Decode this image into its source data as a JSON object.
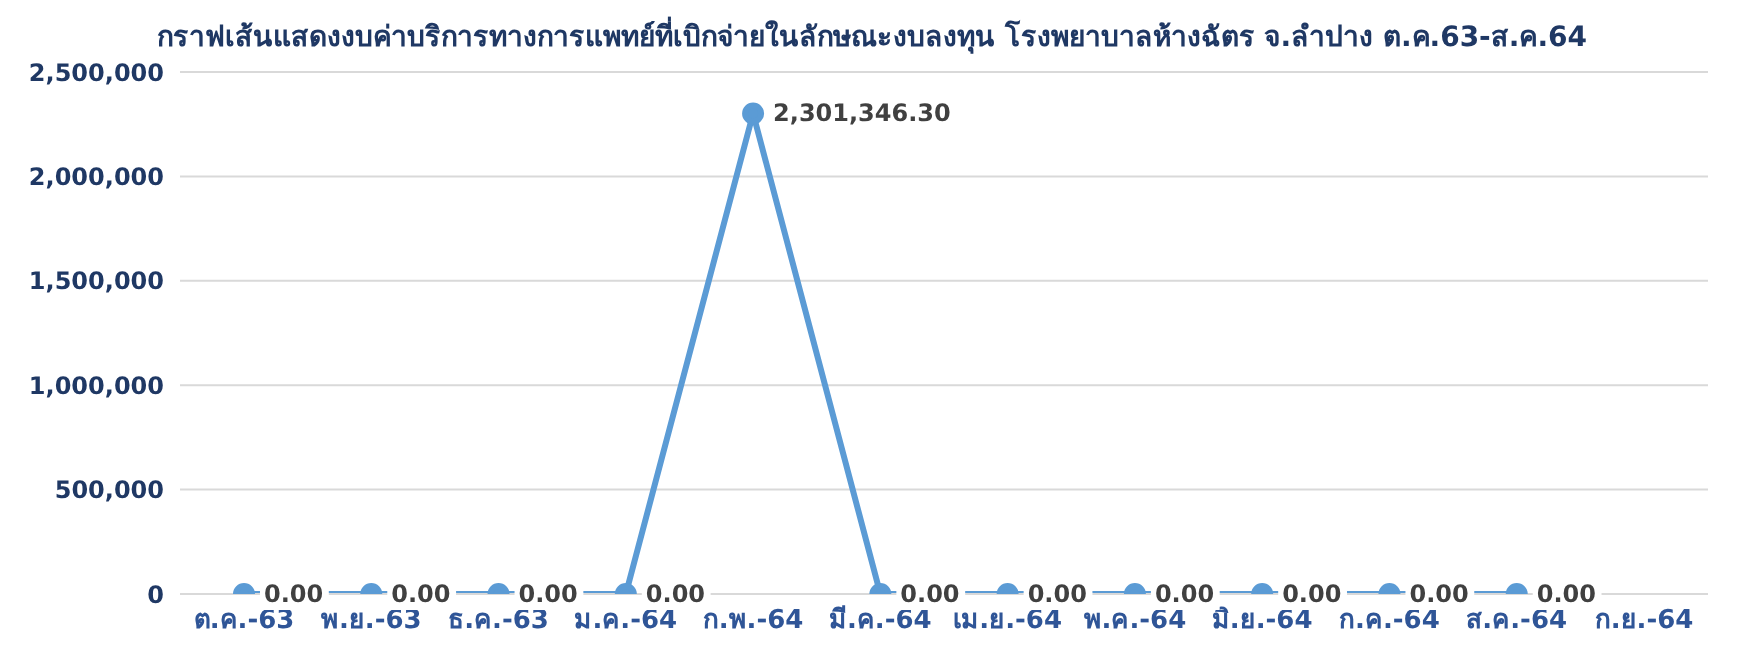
{
  "chart_data": {
    "type": "line",
    "title": "กราฟเส้นแสดงงบค่าบริการทางการแพทย์ที่เบิกจ่ายในลักษณะงบลงทุน โรงพยาบาลห้างฉัตร จ.ลำปาง ต.ค.63-ส.ค.64",
    "categories": [
      "ต.ค.-63",
      "พ.ย.-63",
      "ธ.ค.-63",
      "ม.ค.-64",
      "ก.พ.-64",
      "มี.ค.-64",
      "เม.ย.-64",
      "พ.ค.-64",
      "มิ.ย.-64",
      "ก.ค.-64",
      "ส.ค.-64",
      "ก.ย.-64"
    ],
    "series": [
      {
        "color": "#5b9bd5",
        "values": [
          0,
          0,
          0,
          0,
          2301346.3,
          0,
          0,
          0,
          0,
          0,
          0,
          null
        ],
        "value_labels": [
          "0.00",
          "0.00",
          "0.00",
          "0.00",
          "2,301,346.30",
          "0.00",
          "0.00",
          "0.00",
          "0.00",
          "0.00",
          "0.00",
          null
        ]
      }
    ],
    "ylim": [
      0,
      2500000
    ],
    "yticks": [
      {
        "value": 0,
        "label": "0"
      },
      {
        "value": 500000,
        "label": "500,000"
      },
      {
        "value": 1000000,
        "label": "1,000,000"
      },
      {
        "value": 1500000,
        "label": "1,500,000"
      },
      {
        "value": 2000000,
        "label": "2,000,000"
      },
      {
        "value": 2500000,
        "label": "2,500,000"
      }
    ],
    "grid": "y",
    "marker": "circle",
    "line_style": "solid"
  }
}
